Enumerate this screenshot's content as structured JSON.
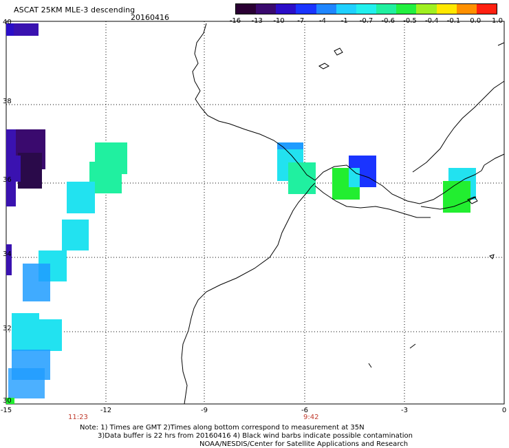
{
  "header": {
    "title": "ASCAT 25KM MLE-3 descending",
    "date": "20160416"
  },
  "colorbar": {
    "labels": [
      "-16",
      "-13",
      "-10",
      "-7",
      "-4",
      "-1",
      "-0.7",
      "-0.6",
      "-0.5",
      "-0.4",
      "-0.1",
      "0.0",
      "1.0"
    ],
    "colors": [
      "#2a0033",
      "#3a0a6e",
      "#2b0ec8",
      "#1a34ff",
      "#1f86ff",
      "#1fd0ff",
      "#22f0ee",
      "#20f0a0",
      "#22f040",
      "#a0f020",
      "#ffe800",
      "#ff9000",
      "#ff2010"
    ]
  },
  "axes": {
    "lat_labels": [
      "40",
      "38",
      "36",
      "34",
      "32",
      "30"
    ],
    "lon_labels": [
      "-15",
      "-12",
      "-9",
      "-6",
      "-3",
      "0"
    ]
  },
  "times": {
    "left": "11:23",
    "right": "9:42"
  },
  "notes": {
    "line1": "Note: 1) Times are GMT 2)Times along bottom correspond to measurement at 35N",
    "line2": "3)Data buffer is 22 hrs from 20160416 4) Black wind barbs indicate possible contamination",
    "line3": "NOAA/NESDIS/Center for Satellite Applications and Research"
  },
  "legend_colors": {
    "deep_purple": "#3a0a6e",
    "purple": "#3a12b0",
    "blue": "#1a34ff",
    "mid_blue": "#1f9cff",
    "light_blue": "#22c8ff",
    "cyan": "#22e2f0",
    "aqua_green": "#20f08a",
    "green": "#22ee30"
  }
}
